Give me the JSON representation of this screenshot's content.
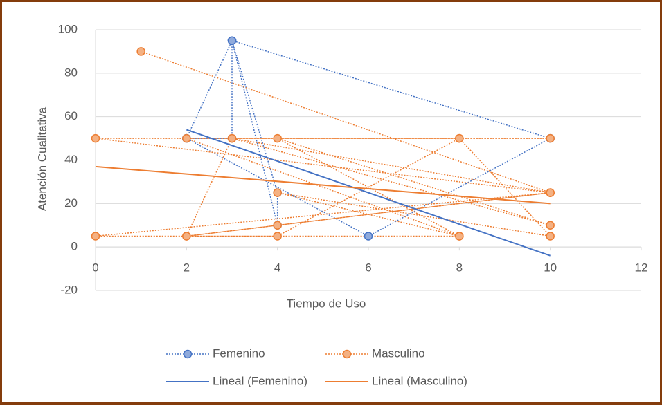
{
  "chart_data": {
    "type": "scatter",
    "xlabel": "Tiempo de Uso",
    "ylabel": "Atención Cualitativa",
    "xlim": [
      0,
      12
    ],
    "xticks": [
      0,
      2,
      4,
      6,
      8,
      10,
      12
    ],
    "ylim": [
      -20,
      100
    ],
    "yticks": [
      -20,
      0,
      20,
      40,
      60,
      80,
      100
    ],
    "grid": true,
    "series": [
      {
        "name": "Femenino",
        "color": "#4472c4",
        "line_style": "dotted",
        "markers": true,
        "x": [
          2,
          3,
          4,
          4,
          3,
          3,
          2,
          6,
          10,
          3
        ],
        "values": [
          50,
          95,
          10,
          25,
          95,
          50,
          50,
          5,
          50,
          95
        ]
      },
      {
        "name": "Masculino",
        "color": "#ed7d31",
        "line_style": "dotted",
        "markers": true,
        "x": [
          1,
          10,
          0,
          10,
          2,
          8,
          4,
          10,
          3,
          2,
          10,
          0,
          4,
          8,
          10,
          4,
          8,
          2,
          4,
          10,
          3,
          8
        ],
        "values": [
          90,
          25,
          50,
          50,
          50,
          5,
          50,
          10,
          50,
          5,
          25,
          5,
          5,
          50,
          5,
          25,
          5,
          5,
          10,
          25,
          50,
          50
        ]
      },
      {
        "name": "Lineal (Femenino)",
        "color": "#4472c4",
        "line_style": "solid",
        "markers": false,
        "x": [
          2,
          10
        ],
        "values": [
          54,
          -4
        ]
      },
      {
        "name": "Lineal (Masculino)",
        "color": "#ed7d31",
        "line_style": "solid",
        "markers": false,
        "x": [
          0,
          10
        ],
        "values": [
          37,
          20
        ]
      }
    ]
  }
}
